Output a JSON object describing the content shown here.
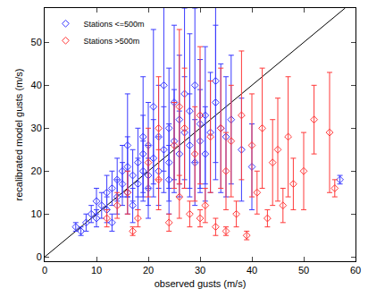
{
  "chart_data": {
    "type": "scatter",
    "xlabel": "observed gusts (m/s)",
    "ylabel": "recalibrated model gusts (m/s)",
    "xlim": [
      0,
      60
    ],
    "ylim": [
      -1,
      58
    ],
    "xticks": [
      0,
      10,
      20,
      30,
      40,
      50,
      60
    ],
    "yticks": [
      0,
      10,
      20,
      30,
      40,
      50
    ],
    "grid": false,
    "legend": "upper left",
    "series": [
      {
        "name": "Stations <=500m",
        "color": "#3a3aff",
        "marker": "diamond-open",
        "x": [
          6,
          7,
          8,
          9,
          10,
          10,
          11,
          12,
          12,
          13,
          14,
          14,
          15,
          15,
          16,
          16,
          17,
          18,
          18,
          19,
          19,
          20,
          20,
          21,
          22,
          22,
          23,
          24,
          24,
          25,
          26,
          26,
          27,
          28,
          28,
          29,
          30,
          30,
          31,
          32,
          33,
          34,
          35,
          36,
          38,
          40,
          57,
          19,
          21,
          23,
          25,
          27,
          29,
          16,
          20,
          13,
          17,
          24,
          31,
          33
        ],
        "y": [
          7,
          6,
          8,
          10,
          9,
          13,
          12,
          15,
          11,
          16,
          14,
          18,
          17,
          20,
          15,
          21,
          19,
          17,
          22,
          24,
          20,
          19,
          26,
          23,
          20,
          28,
          25,
          22,
          30,
          27,
          24,
          32,
          29,
          26,
          34,
          22,
          31,
          27,
          33,
          29,
          36,
          30,
          28,
          32,
          25,
          21,
          18,
          28,
          35,
          40,
          36,
          38,
          40,
          26,
          16,
          8,
          12,
          18,
          24,
          41
        ],
        "error": [
          1,
          1,
          2,
          2,
          2,
          3,
          3,
          4,
          3,
          4,
          4,
          5,
          5,
          6,
          5,
          7,
          6,
          6,
          8,
          9,
          7,
          7,
          10,
          9,
          8,
          12,
          10,
          9,
          14,
          12,
          10,
          15,
          13,
          12,
          18,
          10,
          15,
          12,
          16,
          14,
          18,
          15,
          14,
          15,
          12,
          10,
          1,
          14,
          18,
          20,
          18,
          20,
          18,
          12,
          7,
          2,
          4,
          8,
          11,
          19
        ]
      },
      {
        "name": "Stations >500m",
        "color": "#ff3a3a",
        "marker": "diamond-open",
        "x": [
          14,
          16,
          18,
          20,
          22,
          24,
          25,
          26,
          27,
          28,
          29,
          30,
          31,
          32,
          33,
          34,
          35,
          36,
          37,
          38,
          39,
          40,
          41,
          42,
          43,
          44,
          45,
          46,
          47,
          48,
          50,
          52,
          55,
          56,
          30,
          35,
          22,
          26,
          17,
          12
        ],
        "y": [
          12,
          15,
          9,
          22,
          18,
          8,
          26,
          14,
          30,
          10,
          24,
          33,
          12,
          28,
          7,
          30,
          20,
          27,
          10,
          33,
          5,
          26,
          15,
          30,
          9,
          22,
          25,
          12,
          28,
          17,
          20,
          32,
          29,
          16,
          9,
          6,
          30,
          35,
          6,
          9
        ],
        "error": [
          3,
          5,
          2,
          8,
          7,
          2,
          10,
          5,
          14,
          3,
          11,
          16,
          4,
          13,
          2,
          14,
          9,
          13,
          3,
          15,
          1,
          12,
          5,
          14,
          2,
          10,
          12,
          4,
          14,
          6,
          9,
          8,
          14,
          2,
          2,
          1,
          12,
          18,
          1,
          2
        ]
      },
      {
        "type": "line",
        "color": "#000000",
        "x": [
          0,
          58
        ],
        "y": [
          0,
          58
        ]
      }
    ]
  }
}
